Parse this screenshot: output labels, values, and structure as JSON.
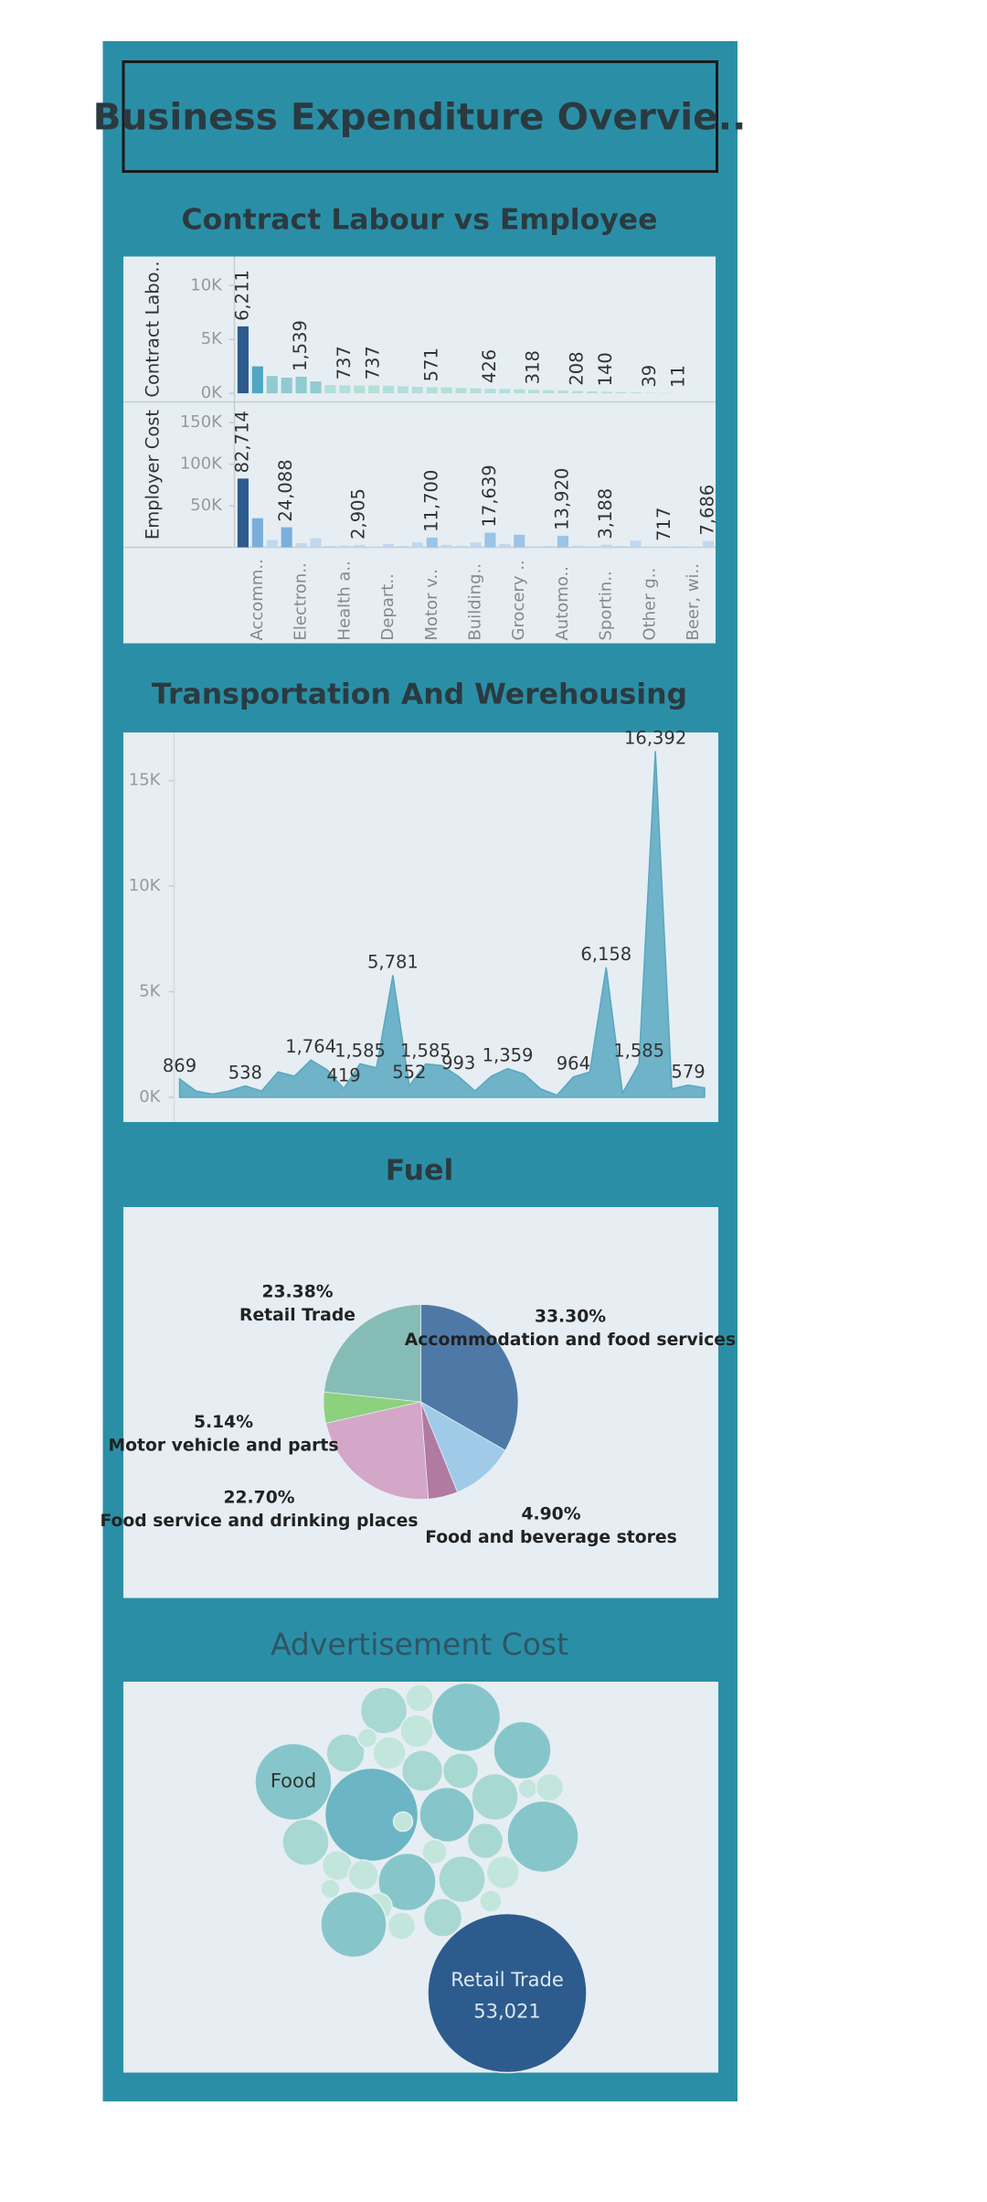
{
  "title": "Business Expenditure Overvie..",
  "chart_data": [
    {
      "type": "bar",
      "title": "Contract Labour vs Employee",
      "categories": [
        null,
        "Accomm..",
        null,
        null,
        "Electron..",
        null,
        null,
        "Health a..",
        null,
        null,
        "Depart..",
        null,
        null,
        "Motor v..",
        null,
        null,
        "Building..",
        null,
        null,
        "Grocery ..",
        null,
        null,
        "Automo..",
        null,
        null,
        "Sportin..",
        null,
        null,
        "Other g..",
        null,
        null,
        "Beer, wi..",
        null
      ],
      "series": [
        {
          "name": "Contract Labo..",
          "values": [
            6211,
            2500,
            1600,
            1450,
            1539,
            1100,
            760,
            737,
            720,
            737,
            700,
            650,
            600,
            571,
            540,
            500,
            470,
            426,
            400,
            370,
            318,
            290,
            250,
            208,
            180,
            140,
            110,
            80,
            39,
            30,
            11,
            8,
            5
          ],
          "value_labels": [
            "6,211",
            null,
            null,
            null,
            "1,539",
            null,
            null,
            "737",
            null,
            "737",
            null,
            null,
            null,
            "571",
            null,
            null,
            null,
            "426",
            null,
            null,
            "318",
            null,
            null,
            "208",
            null,
            "140",
            null,
            null,
            "39",
            null,
            "11",
            null,
            null
          ],
          "colors": [
            "#2d5b8e",
            "#4fa6c2",
            "#8fcbd0",
            "#8fcbd0",
            "#8fcbd0",
            "#8fcbd0",
            "#b3dfd9",
            "#b3dfd9",
            "#b3dfd9",
            "#b3dfd9",
            "#b3dfd9",
            "#b3dfd9",
            "#b3dfd9",
            "#b3dfd9",
            "#b3dfd9",
            "#b3dfd9",
            "#b3dfd9",
            "#b3dfd9",
            "#b3dfd9",
            "#b3dfd9",
            "#b3dfd9",
            "#b3dfd9",
            "#b3dfd9",
            "#b3dfd9",
            "#b3dfd9",
            "#b3dfd9",
            "#b3dfd9",
            "#b3dfd9",
            "#b3dfd9",
            "#b3dfd9",
            "#b3dfd9",
            "#b3dfd9",
            "#b3dfd9"
          ],
          "ylim": [
            -800,
            12700
          ],
          "yticks": [
            {
              "value": 10000,
              "label": "10K"
            },
            {
              "value": 5000,
              "label": "5K"
            },
            {
              "value": 0,
              "label": "0K"
            }
          ]
        },
        {
          "name": "Employer Cost",
          "values": [
            82714,
            35000,
            9000,
            24088,
            5000,
            11000,
            1500,
            2000,
            2905,
            1000,
            4000,
            1500,
            6000,
            11700,
            3000,
            2000,
            6000,
            17639,
            4000,
            15000,
            1200,
            1500,
            13920,
            2000,
            1000,
            3188,
            1500,
            8000,
            1000,
            717,
            1500,
            500,
            7686
          ],
          "value_labels": [
            "82,714",
            null,
            null,
            "24,088",
            null,
            null,
            null,
            null,
            "2,905",
            null,
            null,
            null,
            null,
            "11,700",
            null,
            null,
            null,
            "17,639",
            null,
            null,
            null,
            null,
            "13,920",
            null,
            null,
            "3,188",
            null,
            null,
            null,
            "717",
            null,
            null,
            "7,686"
          ],
          "colors": [
            "#2d5b8e",
            "#7aaedc",
            "#c0d9ee",
            "#7aaedc",
            "#c0d9ee",
            "#c0d9ee",
            "#c0d9ee",
            "#c0d9ee",
            "#c0d9ee",
            "#c0d9ee",
            "#c0d9ee",
            "#c0d9ee",
            "#c0d9ee",
            "#9cc4e6",
            "#c0d9ee",
            "#c0d9ee",
            "#c0d9ee",
            "#9cc4e6",
            "#c0d9ee",
            "#9cc4e6",
            "#c0d9ee",
            "#c0d9ee",
            "#9cc4e6",
            "#c0d9ee",
            "#c0d9ee",
            "#c0d9ee",
            "#c0d9ee",
            "#c0d9ee",
            "#c0d9ee",
            "#c0d9ee",
            "#c0d9ee",
            "#c0d9ee",
            "#c0d9ee"
          ],
          "ylim": [
            0,
            175000
          ],
          "yticks": [
            {
              "value": 150000,
              "label": "150K"
            },
            {
              "value": 100000,
              "label": "100K"
            },
            {
              "value": 50000,
              "label": "50K"
            }
          ]
        }
      ]
    },
    {
      "type": "area",
      "title": "Transportation And Werehousing",
      "values": [
        869,
        300,
        150,
        300,
        538,
        300,
        1200,
        1000,
        1764,
        1300,
        419,
        1585,
        1400,
        5781,
        552,
        1585,
        1500,
        993,
        300,
        1000,
        1359,
        1100,
        400,
        100,
        964,
        1200,
        6158,
        200,
        1585,
        16392,
        400,
        579,
        450
      ],
      "value_labels": [
        "869",
        null,
        null,
        null,
        "538",
        null,
        null,
        null,
        "1,764",
        null,
        "419",
        "1,585",
        null,
        "5,781",
        "552",
        "1,585",
        null,
        "993",
        null,
        null,
        "1,359",
        null,
        null,
        null,
        "964",
        null,
        "6,158",
        null,
        "1,585",
        "16,392",
        null,
        "579",
        null
      ],
      "color": "#6fb3c8",
      "ylim": [
        -1170,
        17275
      ],
      "yticks": [
        {
          "value": 15000,
          "label": "15K"
        },
        {
          "value": 10000,
          "label": "10K"
        },
        {
          "value": 5000,
          "label": "5K"
        },
        {
          "value": 0,
          "label": "0K"
        }
      ]
    },
    {
      "type": "pie",
      "title": "Fuel",
      "categories": [
        "Accommodation and food services",
        null,
        "Food and beverage stores",
        "Food service and drinking places",
        "Motor vehicle and parts",
        "Retail Trade"
      ],
      "values": [
        33.3,
        10.58,
        4.9,
        22.7,
        5.14,
        23.38
      ],
      "value_labels": [
        "33.30%",
        null,
        "4.90%",
        "22.70%",
        "5.14%",
        "23.38%"
      ],
      "colors": [
        "#4e79a7",
        "#a0cbe8",
        "#b07aa1",
        "#d4a6c8",
        "#8cd17d",
        "#86bcb6"
      ]
    },
    {
      "type": "bubble",
      "title": "Advertisement Cost",
      "categories": [
        null,
        null,
        null,
        null,
        null,
        null,
        null,
        null,
        "Food",
        null,
        null,
        null,
        null,
        null,
        null,
        null,
        null,
        null,
        null,
        null,
        null,
        null,
        null,
        null,
        null,
        null,
        null,
        null,
        null,
        null,
        null,
        null,
        "Retail Trade"
      ],
      "values": [
        1576,
        4555,
        9850,
        3089,
        772,
        2269,
        2269,
        6950,
        12356,
        3546,
        2663,
        18219,
        4555,
        772,
        1576,
        6304,
        772,
        4555,
        2663,
        10654,
        1277,
        1907,
        1907,
        6950,
        4555,
        2269,
        772,
        1576,
        9078,
        3089,
        1576,
        1009,
        53021
      ],
      "value_labels": [
        null,
        null,
        null,
        null,
        null,
        null,
        null,
        null,
        null,
        null,
        null,
        null,
        null,
        null,
        null,
        null,
        null,
        null,
        null,
        null,
        null,
        null,
        null,
        null,
        null,
        null,
        null,
        null,
        null,
        null,
        null,
        null,
        "53,021"
      ],
      "colors": [
        "#c3e6dc",
        "#a8d8d2",
        "#86c6ca",
        "#a8d8d2",
        "#c3e6dc",
        "#c3e6dc",
        "#c3e6dc",
        "#86c6ca",
        "#86c6ca",
        "#a8d8d2",
        "#a8d8d2",
        "#6cb5c4",
        "#a8d8d2",
        "#c3e6dc",
        "#c3e6dc",
        "#86c6ca",
        "#c3e6dc",
        "#a8d8d2",
        "#a8d8d2",
        "#86c6ca",
        "#c3e6dc",
        "#c3e6dc",
        "#c3e6dc",
        "#86c6ca",
        "#a8d8d2",
        "#c3e6dc",
        "#c3e6dc",
        "#c3e6dc",
        "#86c6ca",
        "#a8d8d2",
        "#c3e6dc",
        "#c3e6dc",
        "#2d5b8e"
      ]
    }
  ]
}
